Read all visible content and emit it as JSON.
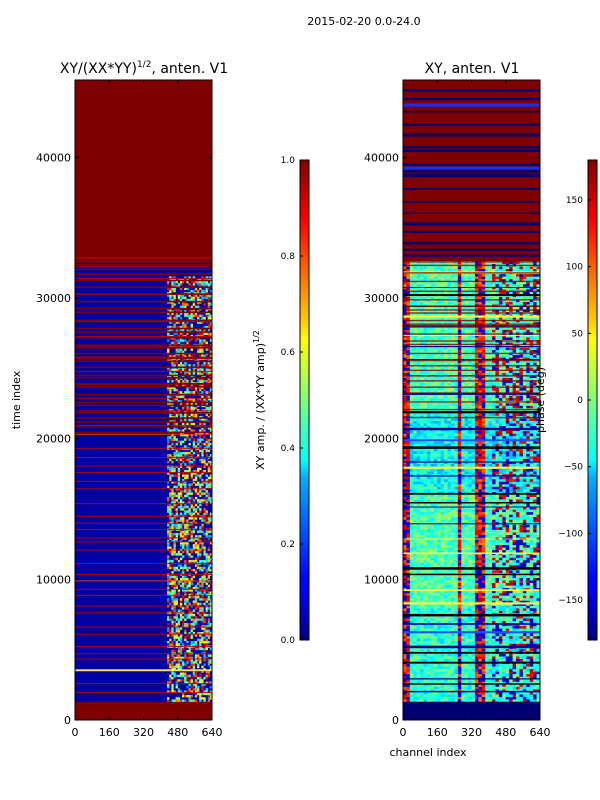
{
  "figure_title": "2015-02-20 0.0-24.0",
  "colors": {
    "deep_red": "#7f0000",
    "dark_blue": "#00008f",
    "mid_blue": "#0000c8",
    "navy": "#000070"
  },
  "chart_data": [
    {
      "type": "heatmap",
      "title_main": "XY/(XX*YY)",
      "title_sup": "1/2",
      "title_tail": ", anten. V1",
      "xlabel": "",
      "ylabel": "time index",
      "xlim": [
        0,
        640
      ],
      "ylim": [
        0,
        45500
      ],
      "xticks": [
        0,
        160,
        320,
        480,
        640
      ],
      "yticks": [
        0,
        10000,
        20000,
        30000,
        40000
      ],
      "colormap": "jet",
      "colorbar": {
        "label_main": "XY amp. / (XX*YY amp)",
        "label_sup": "1/2",
        "range": [
          0.0,
          1.0
        ],
        "ticks": [
          "0.0",
          "0.2",
          "0.4",
          "0.6",
          "0.8",
          "1.0"
        ]
      }
    },
    {
      "type": "heatmap",
      "title_main": "XY, anten. V1",
      "xlabel": "channel index",
      "ylabel": "",
      "xlim": [
        0,
        640
      ],
      "ylim": [
        0,
        45500
      ],
      "xticks": [
        0,
        160,
        320,
        480,
        640
      ],
      "yticks": [
        0,
        10000,
        20000,
        30000,
        40000
      ],
      "colormap": "jet",
      "colorbar": {
        "label_main": "phase (deg)",
        "range": [
          -180,
          180
        ],
        "ticks": [
          "−150",
          "−100",
          "−50",
          "0",
          "50",
          "100",
          "150"
        ]
      }
    }
  ]
}
